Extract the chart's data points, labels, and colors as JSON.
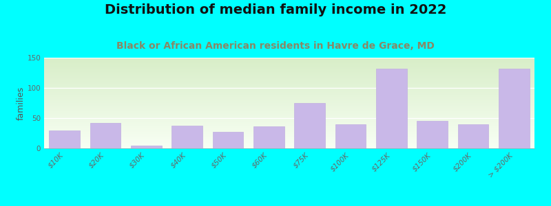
{
  "title": "Distribution of median family income in 2022",
  "subtitle": "Black or African American residents in Havre de Grace, MD",
  "ylabel": "families",
  "categories": [
    "$10K",
    "$20K",
    "$30K",
    "$40K",
    "$50K",
    "$60K",
    "$75K",
    "$100K",
    "$125K",
    "$150K",
    "$200K",
    "> $200K"
  ],
  "values": [
    30,
    42,
    5,
    38,
    27,
    36,
    75,
    40,
    132,
    45,
    40,
    132
  ],
  "bar_color": "#c9b8e8",
  "bar_edge_color": "#c0aee0",
  "background_color": "#00ffff",
  "plot_bg_top": "#d8eec8",
  "plot_bg_bottom": "#f8fff4",
  "title_fontsize": 14,
  "subtitle_fontsize": 10,
  "ylabel_fontsize": 9,
  "tick_fontsize": 7.5,
  "ylim": [
    0,
    150
  ],
  "yticks": [
    0,
    50,
    100,
    150
  ],
  "title_color": "#111111",
  "subtitle_color": "#888866",
  "tick_color": "#666666",
  "ylabel_color": "#555555"
}
